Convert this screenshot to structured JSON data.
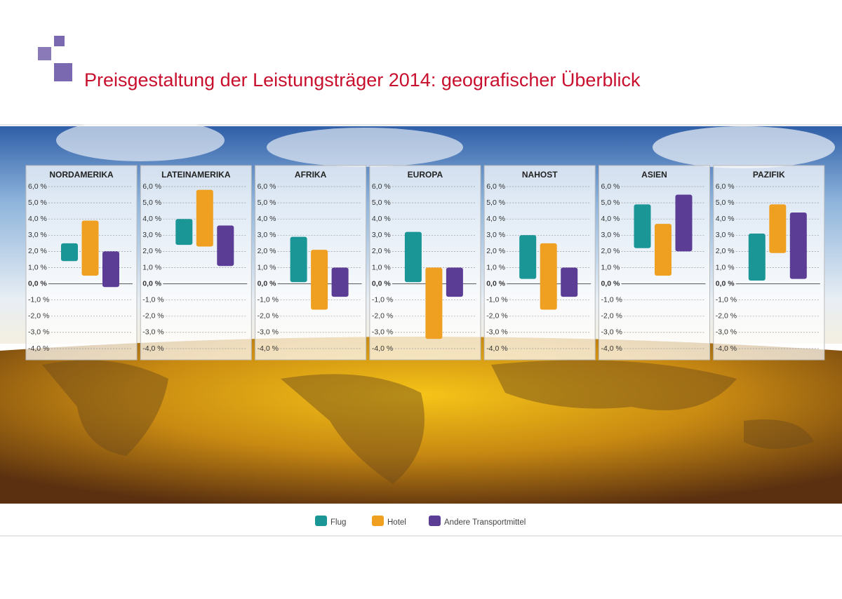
{
  "title": "Preisgestaltung der Leistungsträger 2014: geografischer Überblick",
  "legend": [
    {
      "name": "Flug",
      "color": "#1a9696"
    },
    {
      "name": "Hotel",
      "color": "#f0a020"
    },
    {
      "name": "Andere Transportmittel",
      "color": "#5b3d96"
    }
  ],
  "chart_data": [
    {
      "type": "range_bar",
      "title": "NORDAMERIKA",
      "values": [
        [
          1.4,
          2.5
        ],
        [
          0.5,
          3.9
        ],
        [
          -0.2,
          2.0
        ]
      ],
      "ylim": [
        -4,
        6
      ],
      "yticks": [
        {
          "value": 6,
          "label": "6,0 %"
        },
        {
          "value": 5,
          "label": "5,0 %"
        },
        {
          "value": 4,
          "label": "4,0 %"
        },
        {
          "value": 3,
          "label": "3,0 %"
        },
        {
          "value": 2,
          "label": "2,0 %"
        },
        {
          "value": 1,
          "label": "1,0 %"
        },
        {
          "value": 0,
          "label": "0,0 %"
        },
        {
          "value": -1,
          "label": "-1,0 %"
        },
        {
          "value": -2,
          "label": "-2,0 %"
        },
        {
          "value": -3,
          "label": "-3,0 %"
        },
        {
          "value": -4,
          "label": "-4,0 %"
        }
      ]
    },
    {
      "type": "range_bar",
      "title": "LATEINAMERIKA",
      "values": [
        [
          2.4,
          4.0
        ],
        [
          2.3,
          5.8
        ],
        [
          1.1,
          3.6
        ]
      ],
      "ylim": [
        -4,
        6
      ],
      "yticks": [
        {
          "value": 6,
          "label": "6,0 %"
        },
        {
          "value": 5,
          "label": "5,0 %"
        },
        {
          "value": 4,
          "label": "4,0 %"
        },
        {
          "value": 3,
          "label": "3,0 %"
        },
        {
          "value": 2,
          "label": "2,0 %"
        },
        {
          "value": 1,
          "label": "1,0 %"
        },
        {
          "value": 0,
          "label": "0,0 %"
        },
        {
          "value": -1,
          "label": "-1,0 %"
        },
        {
          "value": -2,
          "label": "-2,0 %"
        },
        {
          "value": -3,
          "label": "-3,0 %"
        },
        {
          "value": -4,
          "label": "-4,0 %"
        }
      ]
    },
    {
      "type": "range_bar",
      "title": "AFRIKA",
      "values": [
        [
          0.1,
          2.9
        ],
        [
          -1.6,
          2.1
        ],
        [
          -0.8,
          1.0
        ]
      ],
      "ylim": [
        -4,
        6
      ],
      "yticks": [
        {
          "value": 6,
          "label": "6,0 %"
        },
        {
          "value": 5,
          "label": "5,0 %"
        },
        {
          "value": 4,
          "label": "4,0 %"
        },
        {
          "value": 3,
          "label": "3,0 %"
        },
        {
          "value": 2,
          "label": "2,0 %"
        },
        {
          "value": 1,
          "label": "1,0 %"
        },
        {
          "value": 0,
          "label": "0,0 %"
        },
        {
          "value": -1,
          "label": "-1,0 %"
        },
        {
          "value": -2,
          "label": "-2,0 %"
        },
        {
          "value": -3,
          "label": "-3,0 %"
        },
        {
          "value": -4,
          "label": "-4,0 %"
        }
      ]
    },
    {
      "type": "range_bar",
      "title": "EUROPA",
      "values": [
        [
          0.1,
          3.2
        ],
        [
          -3.4,
          1.0
        ],
        [
          -0.8,
          1.0
        ]
      ],
      "ylim": [
        -4,
        6
      ],
      "yticks": [
        {
          "value": 6,
          "label": "6,0 %"
        },
        {
          "value": 5,
          "label": "5,0 %"
        },
        {
          "value": 4,
          "label": "4,0 %"
        },
        {
          "value": 3,
          "label": "3,0 %"
        },
        {
          "value": 2,
          "label": "2,0 %"
        },
        {
          "value": 1,
          "label": "1,0 %"
        },
        {
          "value": 0,
          "label": "0,0 %"
        },
        {
          "value": -1,
          "label": "-1,0 %"
        },
        {
          "value": -2,
          "label": "-2,0 %"
        },
        {
          "value": -3,
          "label": "-3,0 %"
        },
        {
          "value": -4,
          "label": "-4,0 %"
        }
      ]
    },
    {
      "type": "range_bar",
      "title": "NAHOST",
      "values": [
        [
          0.3,
          3.0
        ],
        [
          -1.6,
          2.5
        ],
        [
          -0.8,
          1.0
        ]
      ],
      "ylim": [
        -4,
        6
      ],
      "yticks": [
        {
          "value": 6,
          "label": "6,0 %"
        },
        {
          "value": 5,
          "label": "5,0 %"
        },
        {
          "value": 4,
          "label": "4,0 %"
        },
        {
          "value": 3,
          "label": "3,0 %"
        },
        {
          "value": 2,
          "label": "2,0 %"
        },
        {
          "value": 1,
          "label": "1,0 %"
        },
        {
          "value": 0,
          "label": "0,0 %"
        },
        {
          "value": -1,
          "label": "-1,0 %"
        },
        {
          "value": -2,
          "label": "-2,0 %"
        },
        {
          "value": -3,
          "label": "-3,0 %"
        },
        {
          "value": -4,
          "label": "-4,0 %"
        }
      ]
    },
    {
      "type": "range_bar",
      "title": "ASIEN",
      "values": [
        [
          2.2,
          4.9
        ],
        [
          0.5,
          3.7
        ],
        [
          2.0,
          5.5
        ]
      ],
      "ylim": [
        -4,
        6
      ],
      "yticks": [
        {
          "value": 6,
          "label": "6,0 %"
        },
        {
          "value": 5,
          "label": "5,0 %"
        },
        {
          "value": 4,
          "label": "4,0 %"
        },
        {
          "value": 3,
          "label": "3,0 %"
        },
        {
          "value": 2,
          "label": "2,0 %"
        },
        {
          "value": 1,
          "label": "1,0 %"
        },
        {
          "value": 0,
          "label": "0,0 %"
        },
        {
          "value": -1,
          "label": "-1,0 %"
        },
        {
          "value": -2,
          "label": "-2,0 %"
        },
        {
          "value": -3,
          "label": "-3,0 %"
        },
        {
          "value": -4,
          "label": "-4,0 %"
        }
      ]
    },
    {
      "type": "range_bar",
      "title": "PAZIFIK",
      "values": [
        [
          0.2,
          3.1
        ],
        [
          1.9,
          4.9
        ],
        [
          0.3,
          4.4
        ]
      ],
      "ylim": [
        -4,
        6
      ],
      "yticks": [
        {
          "value": 6,
          "label": "6,0 %"
        },
        {
          "value": 5,
          "label": "5,0 %"
        },
        {
          "value": 4,
          "label": "4,0 %"
        },
        {
          "value": 3,
          "label": "3,0 %"
        },
        {
          "value": 2,
          "label": "2,0 %"
        },
        {
          "value": 1,
          "label": "1,0 %"
        },
        {
          "value": 0,
          "label": "0,0 %"
        },
        {
          "value": -1,
          "label": "-1,0 %"
        },
        {
          "value": -2,
          "label": "-2,0 %"
        },
        {
          "value": -3,
          "label": "-3,0 %"
        },
        {
          "value": -4,
          "label": "-4,0 %"
        }
      ]
    }
  ]
}
